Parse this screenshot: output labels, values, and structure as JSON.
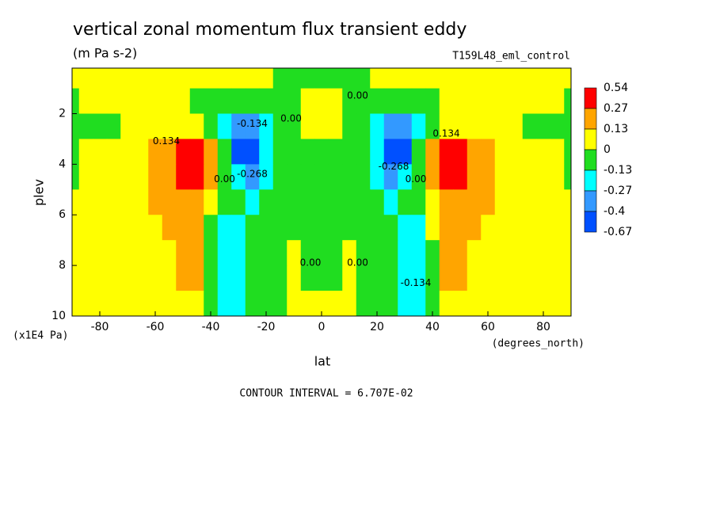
{
  "chart_data": {
    "type": "contour",
    "title": "vertical zonal momentum flux transient eddy",
    "subtitle": "(m Pa s-2)",
    "run_label": "T159L48_eml_control",
    "x_label": "lat",
    "x_units": "(degrees_north)",
    "y_label": "plev",
    "y_units": "(x1E4 Pa)",
    "footer": "CONTOUR INTERVAL = 6.707E-02",
    "xlim": [
      -90,
      90
    ],
    "xticks": [
      -80,
      -60,
      -40,
      -20,
      0,
      20,
      40,
      60,
      80
    ],
    "ylim": [
      10,
      0.2
    ],
    "yticks": [
      2,
      4,
      6,
      8,
      10
    ],
    "levels": [
      0.54,
      0.27,
      0.13,
      0,
      -0.13,
      -0.27,
      -0.4,
      -0.67
    ],
    "level_colors": [
      "#ff0000",
      "#ffa500",
      "#ffff00",
      "#20dd20",
      "#00ffff",
      "#3399ff",
      "#0050ff"
    ],
    "lat": [
      -90,
      -85,
      -80,
      -75,
      -70,
      -65,
      -60,
      -55,
      -50,
      -45,
      -40,
      -35,
      -30,
      -25,
      -20,
      -15,
      -10,
      -5,
      0,
      5,
      10,
      15,
      20,
      25,
      30,
      35,
      40,
      45,
      50,
      55,
      60,
      65,
      70,
      75,
      80,
      85,
      90
    ],
    "plev": [
      0.5,
      1.5,
      2.5,
      3.5,
      4.5,
      5.5,
      6.5,
      7.5,
      8.5,
      9.5
    ],
    "z": [
      [
        0.06,
        0.06,
        0.06,
        0.06,
        0.06,
        0.06,
        0.06,
        0.06,
        0.06,
        0.06,
        0.06,
        0.06,
        0.06,
        0.06,
        0.06,
        -0.06,
        -0.06,
        -0.06,
        -0.06,
        -0.06,
        -0.06,
        -0.06,
        0.06,
        0.06,
        0.06,
        0.06,
        0.06,
        0.06,
        0.06,
        0.06,
        0.06,
        0.06,
        0.06,
        0.06,
        0.06,
        0.06,
        0.06
      ],
      [
        -0.06,
        0.06,
        0.06,
        0.06,
        0.06,
        0.06,
        0.06,
        0.06,
        0.06,
        -0.06,
        -0.06,
        -0.06,
        -0.06,
        -0.06,
        -0.06,
        -0.06,
        -0.06,
        0.06,
        0.06,
        0.06,
        -0.06,
        -0.06,
        -0.06,
        -0.06,
        -0.06,
        -0.06,
        -0.06,
        0.06,
        0.06,
        0.06,
        0.06,
        0.06,
        0.06,
        0.06,
        0.06,
        0.06,
        -0.06
      ],
      [
        -0.06,
        -0.06,
        -0.06,
        -0.06,
        0.06,
        0.06,
        0.06,
        0.06,
        0.06,
        0.06,
        -0.06,
        -0.2,
        -0.33,
        -0.33,
        -0.2,
        -0.06,
        -0.06,
        0.06,
        0.06,
        0.06,
        -0.06,
        -0.06,
        -0.2,
        -0.33,
        -0.33,
        -0.2,
        -0.06,
        0.06,
        0.06,
        0.06,
        0.06,
        0.06,
        0.06,
        -0.06,
        -0.06,
        -0.06,
        -0.06
      ],
      [
        -0.06,
        0.06,
        0.06,
        0.06,
        0.06,
        0.06,
        0.2,
        0.2,
        0.4,
        0.4,
        0.2,
        -0.06,
        -0.5,
        -0.5,
        -0.2,
        -0.06,
        -0.06,
        -0.06,
        -0.06,
        -0.06,
        -0.06,
        -0.06,
        -0.2,
        -0.5,
        -0.5,
        -0.06,
        0.2,
        0.4,
        0.4,
        0.2,
        0.2,
        0.06,
        0.06,
        0.06,
        0.06,
        0.06,
        -0.06
      ],
      [
        -0.06,
        0.06,
        0.06,
        0.06,
        0.06,
        0.06,
        0.2,
        0.2,
        0.4,
        0.4,
        0.2,
        -0.06,
        -0.2,
        -0.33,
        -0.2,
        -0.06,
        -0.06,
        -0.06,
        -0.06,
        -0.06,
        -0.06,
        -0.06,
        -0.2,
        -0.33,
        -0.2,
        -0.06,
        0.2,
        0.4,
        0.4,
        0.2,
        0.2,
        0.06,
        0.06,
        0.06,
        0.06,
        0.06,
        -0.06
      ],
      [
        0.06,
        0.06,
        0.06,
        0.06,
        0.06,
        0.06,
        0.2,
        0.2,
        0.2,
        0.2,
        0.06,
        -0.06,
        -0.06,
        -0.2,
        -0.06,
        -0.06,
        -0.06,
        -0.06,
        -0.06,
        -0.06,
        -0.06,
        -0.06,
        -0.06,
        -0.2,
        -0.06,
        -0.06,
        0.06,
        0.2,
        0.2,
        0.2,
        0.2,
        0.06,
        0.06,
        0.06,
        0.06,
        0.06,
        0.06
      ],
      [
        0.06,
        0.06,
        0.06,
        0.06,
        0.06,
        0.06,
        0.06,
        0.2,
        0.2,
        0.2,
        -0.06,
        -0.2,
        -0.2,
        -0.06,
        -0.06,
        -0.06,
        -0.06,
        -0.06,
        -0.06,
        -0.06,
        -0.06,
        -0.06,
        -0.06,
        -0.06,
        -0.2,
        -0.2,
        0.06,
        0.2,
        0.2,
        0.2,
        0.06,
        0.06,
        0.06,
        0.06,
        0.06,
        0.06,
        0.06
      ],
      [
        0.06,
        0.06,
        0.06,
        0.06,
        0.06,
        0.06,
        0.06,
        0.06,
        0.2,
        0.2,
        -0.06,
        -0.2,
        -0.2,
        -0.06,
        -0.06,
        -0.06,
        0.06,
        -0.06,
        -0.06,
        -0.06,
        0.06,
        -0.06,
        -0.06,
        -0.06,
        -0.2,
        -0.2,
        -0.06,
        0.2,
        0.2,
        0.06,
        0.06,
        0.06,
        0.06,
        0.06,
        0.06,
        0.06,
        0.06
      ],
      [
        0.06,
        0.06,
        0.06,
        0.06,
        0.06,
        0.06,
        0.06,
        0.06,
        0.2,
        0.2,
        -0.06,
        -0.2,
        -0.2,
        -0.06,
        -0.06,
        -0.06,
        0.06,
        -0.06,
        -0.06,
        -0.06,
        0.06,
        -0.06,
        -0.06,
        -0.06,
        -0.2,
        -0.2,
        -0.06,
        0.2,
        0.2,
        0.06,
        0.06,
        0.06,
        0.06,
        0.06,
        0.06,
        0.06,
        0.06
      ],
      [
        0.06,
        0.06,
        0.06,
        0.06,
        0.06,
        0.06,
        0.06,
        0.06,
        0.06,
        0.06,
        -0.06,
        -0.2,
        -0.2,
        -0.06,
        -0.06,
        -0.06,
        0.06,
        0.06,
        0.06,
        0.06,
        0.06,
        -0.06,
        -0.06,
        -0.06,
        -0.2,
        -0.2,
        -0.06,
        0.06,
        0.06,
        0.06,
        0.06,
        0.06,
        0.06,
        0.06,
        0.06,
        0.06,
        0.06
      ]
    ],
    "contour_labels": [
      {
        "value": 0.134,
        "label": "0.134",
        "lat": -56,
        "plev": 3.1
      },
      {
        "value": -0.134,
        "label": "-0.134",
        "lat": -25,
        "plev": 2.4
      },
      {
        "value": 0,
        "label": "0.00",
        "lat": -35,
        "plev": 4.6
      },
      {
        "value": -0.268,
        "label": "-0.268",
        "lat": -25,
        "plev": 4.4
      },
      {
        "value": 0,
        "label": "0.00",
        "lat": -11,
        "plev": 2.2
      },
      {
        "value": 0,
        "label": "0.00",
        "lat": 13,
        "plev": 1.3
      },
      {
        "value": 0,
        "label": "0.00",
        "lat": -4,
        "plev": 7.9
      },
      {
        "value": 0,
        "label": "0.00",
        "lat": 13,
        "plev": 7.9
      },
      {
        "value": -0.268,
        "label": "-0.268",
        "lat": 26,
        "plev": 4.1
      },
      {
        "value": 0,
        "label": "0.00",
        "lat": 34,
        "plev": 4.6
      },
      {
        "value": 0.134,
        "label": "0.134",
        "lat": 45,
        "plev": 2.8
      },
      {
        "value": -0.134,
        "label": "-0.134",
        "lat": 34,
        "plev": 8.7
      }
    ]
  }
}
